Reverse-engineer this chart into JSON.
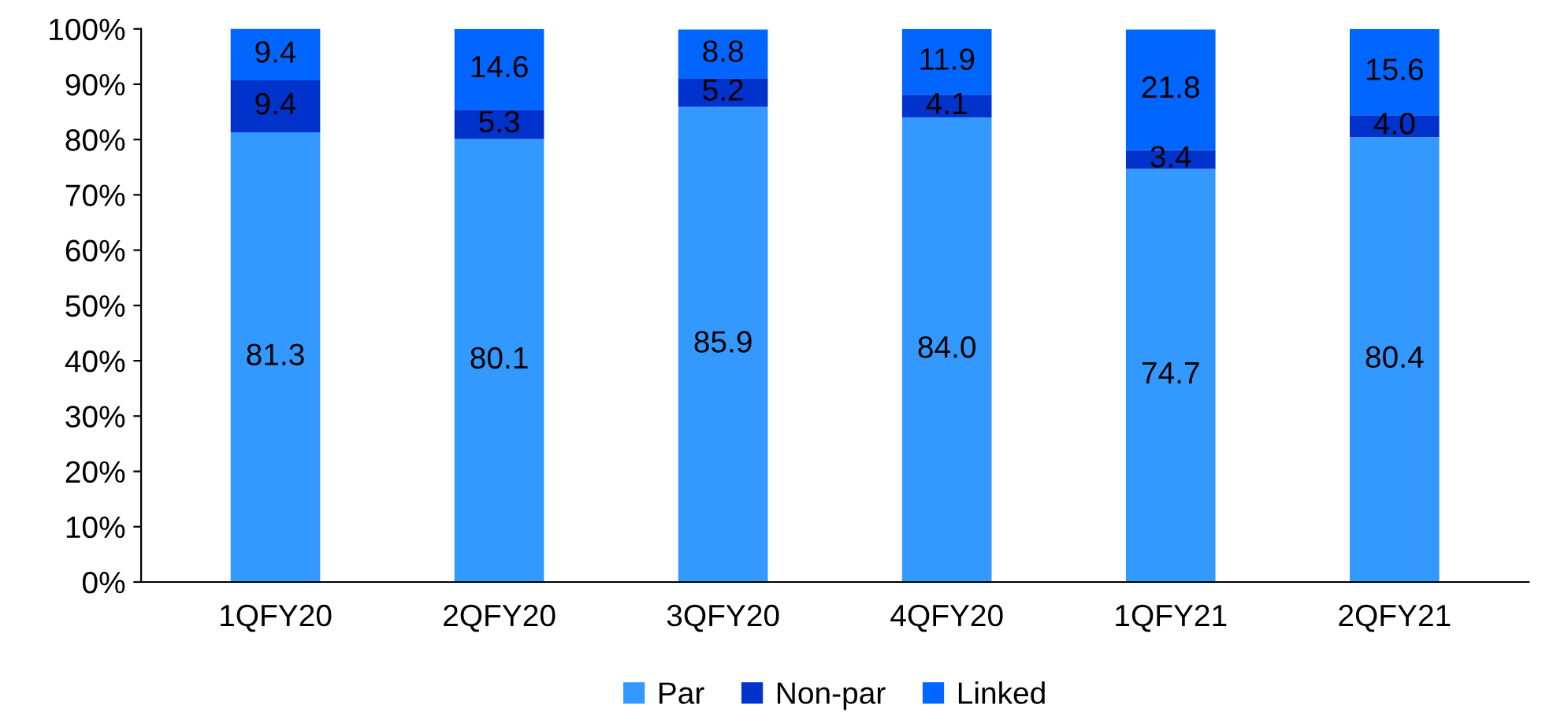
{
  "chart_data": {
    "type": "bar",
    "stacked": true,
    "categories": [
      "1QFY20",
      "2QFY20",
      "3QFY20",
      "4QFY20",
      "1QFY21",
      "2QFY21"
    ],
    "series": [
      {
        "name": "Par",
        "color": "#3399ff",
        "values": [
          81.3,
          80.1,
          85.9,
          84.0,
          74.7,
          80.4
        ],
        "value_labels": [
          "81.3",
          "80.1",
          "85.9",
          "84.0",
          "74.7",
          "80.4"
        ]
      },
      {
        "name": "Non-par",
        "color": "#0033cc",
        "values": [
          9.4,
          5.3,
          5.2,
          4.1,
          3.4,
          4.0
        ],
        "value_labels": [
          "9.4",
          "5.3",
          "5.2",
          "4.1",
          "3.4",
          "4.0"
        ]
      },
      {
        "name": "Linked",
        "color": "#0066ff",
        "values": [
          9.4,
          14.6,
          8.8,
          11.9,
          21.8,
          15.6
        ],
        "value_labels": [
          "9.4",
          "14.6",
          "8.8",
          "11.9",
          "21.8",
          "15.6"
        ]
      }
    ],
    "ylim": [
      0,
      100
    ],
    "yticks": [
      {
        "value": 0,
        "label": "0%"
      },
      {
        "value": 10,
        "label": "10%"
      },
      {
        "value": 20,
        "label": "20%"
      },
      {
        "value": 30,
        "label": "30%"
      },
      {
        "value": 40,
        "label": "40%"
      },
      {
        "value": 50,
        "label": "50%"
      },
      {
        "value": 60,
        "label": "60%"
      },
      {
        "value": 70,
        "label": "70%"
      },
      {
        "value": 80,
        "label": "80%"
      },
      {
        "value": 90,
        "label": "90%"
      },
      {
        "value": 100,
        "label": "100%"
      }
    ],
    "grid": false,
    "legend": "bottom"
  }
}
